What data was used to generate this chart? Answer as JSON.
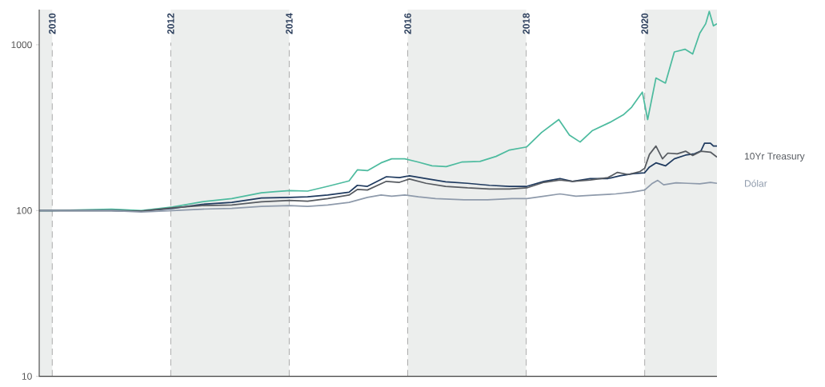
{
  "chart_data": {
    "type": "line",
    "log": "y",
    "grid": "x",
    "xlim": [
      2009.78,
      2021.22
    ],
    "xticks": [
      2010,
      2012,
      2014,
      2016,
      2018,
      2020
    ],
    "ylim": [
      10,
      1630
    ],
    "yticks": [
      10,
      100,
      1000
    ],
    "bands": [
      {
        "axis": "x",
        "from": 2009.78,
        "to": 2010,
        "color": "#eceeed"
      },
      {
        "axis": "x",
        "from": 2012,
        "to": 2014,
        "color": "#eceeed"
      },
      {
        "axis": "x",
        "from": 2016,
        "to": 2018,
        "color": "#eceeed"
      },
      {
        "axis": "x",
        "from": 2020,
        "to": 2021.22,
        "color": "#eceeed"
      }
    ],
    "series": [
      {
        "color": "#4dbb9f",
        "x": [
          2009.78,
          2010,
          2010.5,
          2011,
          2011.5,
          2012.03,
          2012.53,
          2013.03,
          2013.53,
          2013.77,
          2014.01,
          2014.31,
          2014.65,
          2015.01,
          2015.15,
          2015.32,
          2015.55,
          2015.73,
          2015.95,
          2016.18,
          2016.41,
          2016.65,
          2016.91,
          2017.22,
          2017.49,
          2017.72,
          2018.01,
          2018.26,
          2018.55,
          2018.73,
          2018.91,
          2019.12,
          2019.41,
          2019.64,
          2019.78,
          2019.96,
          2020.05,
          2020.19,
          2020.35,
          2020.5,
          2020.68,
          2020.81,
          2020.93,
          2021.03,
          2021.09,
          2021.16,
          2021.22
        ],
        "values": [
          100,
          100,
          101,
          102,
          100,
          105,
          113,
          118,
          128,
          130,
          132,
          131,
          140,
          151,
          176,
          174,
          194,
          205,
          205,
          196,
          186,
          184,
          196,
          198,
          212,
          232,
          242,
          296,
          354,
          285,
          259,
          304,
          340,
          378,
          420,
          518,
          354,
          630,
          587,
          905,
          940,
          880,
          1175,
          1340,
          1590,
          1300,
          1340
        ]
      },
      {
        "color": "#1f3a5f",
        "x": [
          2009.78,
          2010,
          2010.5,
          2011,
          2011.5,
          2012.03,
          2012.53,
          2013.03,
          2013.53,
          2014.01,
          2014.31,
          2014.65,
          2015.01,
          2015.15,
          2015.32,
          2015.64,
          2015.86,
          2016.03,
          2016.31,
          2016.64,
          2017.01,
          2017.38,
          2017.72,
          2018.01,
          2018.3,
          2018.57,
          2018.78,
          2019.08,
          2019.38,
          2019.58,
          2019.81,
          2020,
          2020.08,
          2020.19,
          2020.35,
          2020.5,
          2020.69,
          2020.84,
          2020.95,
          2021.01,
          2021.11,
          2021.16,
          2021.22
        ],
        "values": [
          100,
          100,
          100,
          100,
          99,
          103,
          109,
          112,
          119,
          120,
          121,
          124,
          129,
          142,
          140,
          160,
          158,
          162,
          156,
          149,
          146,
          142,
          140,
          140,
          150,
          156,
          150,
          156,
          156,
          162,
          167,
          169,
          183,
          194,
          186,
          205,
          216,
          220,
          229,
          255,
          255,
          245,
          245
        ]
      },
      {
        "name": "10Yr Treasury",
        "color": "#575b61",
        "x": [
          2009.78,
          2010,
          2010.5,
          2011,
          2011.5,
          2012.03,
          2012.53,
          2013.03,
          2013.53,
          2014.01,
          2014.31,
          2014.65,
          2015.01,
          2015.15,
          2015.32,
          2015.64,
          2015.86,
          2016.03,
          2016.31,
          2016.64,
          2017.01,
          2017.38,
          2017.72,
          2018.01,
          2018.3,
          2018.57,
          2018.78,
          2019.08,
          2019.38,
          2019.54,
          2019.72,
          2019.92,
          2020,
          2020.08,
          2020.19,
          2020.3,
          2020.39,
          2020.55,
          2020.69,
          2020.81,
          2020.95,
          2021.11,
          2021.22
        ],
        "values": [
          100,
          100,
          100,
          100,
          99,
          104,
          107,
          108,
          113,
          115,
          114,
          118,
          124,
          134,
          133,
          150,
          148,
          155,
          146,
          140,
          137,
          135,
          135,
          137,
          148,
          153,
          150,
          153,
          158,
          170,
          165,
          172,
          180,
          218,
          245,
          205,
          222,
          220,
          228,
          215,
          228,
          225,
          210
        ]
      },
      {
        "name": "Dólar",
        "color": "#8e9aab",
        "x": [
          2009.78,
          2010,
          2010.5,
          2011,
          2011.5,
          2012.03,
          2012.53,
          2013.03,
          2013.53,
          2014.01,
          2014.31,
          2014.65,
          2015.01,
          2015.32,
          2015.55,
          2015.73,
          2015.95,
          2016.18,
          2016.47,
          2016.95,
          2017.35,
          2017.76,
          2018.01,
          2018.3,
          2018.57,
          2018.84,
          2019.18,
          2019.51,
          2019.78,
          2020,
          2020.12,
          2020.22,
          2020.32,
          2020.53,
          2020.73,
          2020.93,
          2021.11,
          2021.22
        ],
        "values": [
          100,
          100,
          100,
          100,
          98,
          100,
          102,
          103,
          106,
          107,
          106,
          108,
          112,
          120,
          124,
          122,
          124,
          121,
          118,
          116,
          116,
          118,
          118,
          122,
          126,
          122,
          124,
          126,
          129,
          133,
          145,
          152,
          143,
          147,
          146,
          145,
          148,
          146
        ]
      }
    ]
  }
}
